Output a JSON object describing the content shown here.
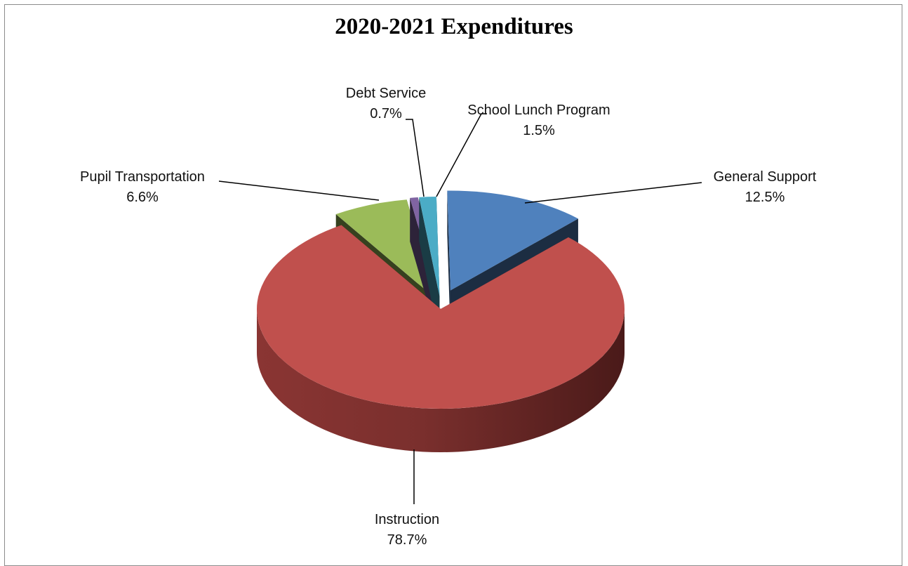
{
  "chart_data": {
    "type": "pie",
    "title": "2020-2021 Expenditures",
    "three_d": true,
    "exploded": true,
    "slices": [
      {
        "name": "General Support",
        "label": "12.5%",
        "value": 12.5,
        "color": "#4f81bd"
      },
      {
        "name": "Instruction",
        "label": "78.7%",
        "value": 78.7,
        "color": "#c0504d"
      },
      {
        "name": "Pupil Transportation",
        "label": "6.6%",
        "value": 6.6,
        "color": "#9bbb59"
      },
      {
        "name": "Debt Service",
        "label": "0.7%",
        "value": 0.7,
        "color": "#8064a2"
      },
      {
        "name": "School Lunch Program",
        "label": "1.5%",
        "value": 1.5,
        "color": "#4bacc6"
      }
    ]
  }
}
